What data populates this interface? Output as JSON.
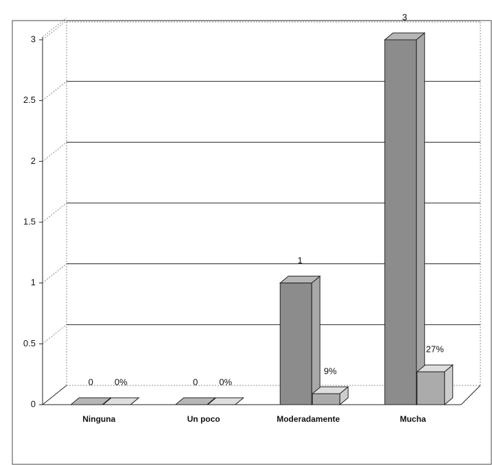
{
  "chart_data": {
    "type": "bar3d",
    "categories": [
      "Ninguna",
      "Un poco",
      "Moderadamente",
      "Mucha"
    ],
    "series": [
      {
        "color": "#8c8c8c",
        "values": [
          0,
          0,
          1,
          3
        ]
      },
      {
        "color": "#ababab",
        "values": [
          0,
          0,
          0.09,
          0.27
        ],
        "value_labels": [
          "0%",
          "0%",
          "9%",
          "27%"
        ]
      }
    ],
    "ylim": [
      0,
      3
    ],
    "yticks": [
      0,
      0.5,
      1,
      1.5,
      2,
      2.5,
      3
    ],
    "grid": true
  }
}
